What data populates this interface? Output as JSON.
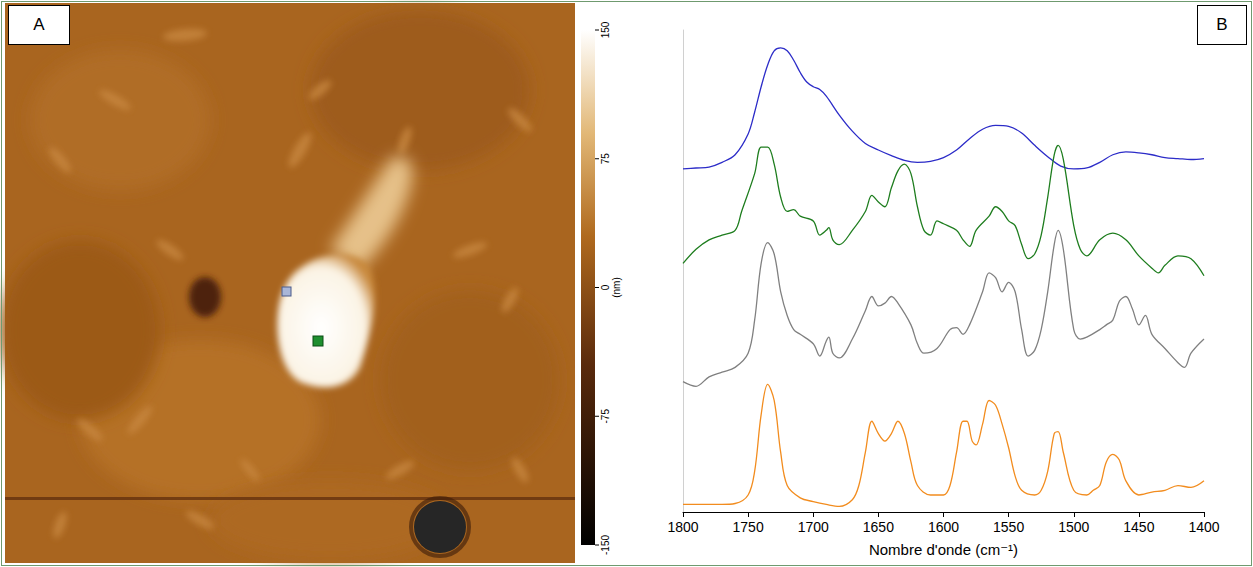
{
  "panel_labels": [
    "A",
    "B"
  ],
  "image": {
    "colorbar": {
      "range": [
        -150,
        150
      ],
      "ticks": [
        150,
        75,
        0,
        -75,
        -150
      ],
      "unit": "(nm)"
    }
  },
  "chart_data": {
    "type": "line",
    "x_label": "Nombre d'onde (cm⁻¹)",
    "xlim": [
      1400,
      1800
    ],
    "xticks": [
      1800,
      1750,
      1700,
      1650,
      1600,
      1550,
      1500,
      1450,
      1400
    ],
    "ylim": [
      0,
      510
    ],
    "yticks": [],
    "tick_labels": "x",
    "grid": false,
    "series": [
      {
        "color": "#2c2cc8",
        "x": [
          1800,
          1790,
          1780,
          1770,
          1760,
          1750,
          1745,
          1740,
          1735,
          1730,
          1725,
          1720,
          1715,
          1710,
          1705,
          1700,
          1695,
          1690,
          1680,
          1670,
          1660,
          1650,
          1640,
          1630,
          1620,
          1610,
          1600,
          1590,
          1580,
          1570,
          1560,
          1550,
          1540,
          1530,
          1520,
          1510,
          1500,
          1490,
          1480,
          1470,
          1460,
          1450,
          1440,
          1430,
          1420,
          1410,
          1400
        ],
        "values": [
          363,
          364,
          365,
          370,
          378,
          400,
          423,
          450,
          473,
          488,
          491,
          488,
          478,
          465,
          455,
          450,
          447,
          440,
          420,
          403,
          390,
          383,
          377,
          372,
          370,
          371,
          375,
          383,
          395,
          405,
          409,
          408,
          401,
          388,
          376,
          366,
          363,
          364,
          370,
          378,
          381,
          380,
          378,
          375,
          374,
          373,
          374
        ]
      },
      {
        "color": "#1e7d1e",
        "x": [
          1800,
          1790,
          1780,
          1770,
          1760,
          1755,
          1745,
          1740,
          1735,
          1730,
          1725,
          1720,
          1715,
          1710,
          1700,
          1695,
          1690,
          1688,
          1685,
          1680,
          1670,
          1660,
          1655,
          1650,
          1645,
          1640,
          1635,
          1630,
          1625,
          1620,
          1615,
          1610,
          1605,
          1600,
          1590,
          1585,
          1580,
          1575,
          1565,
          1560,
          1555,
          1550,
          1545,
          1540,
          1535,
          1530,
          1525,
          1520,
          1515,
          1512,
          1508,
          1500,
          1495,
          1490,
          1480,
          1470,
          1460,
          1450,
          1440,
          1435,
          1430,
          1420,
          1410,
          1400
        ],
        "values": [
          263,
          278,
          288,
          293,
          298,
          318,
          358,
          386,
          386,
          368,
          333,
          318,
          320,
          313,
          308,
          293,
          298,
          301,
          288,
          283,
          298,
          318,
          335,
          328,
          323,
          343,
          361,
          368,
          358,
          323,
          298,
          293,
          308,
          305,
          298,
          288,
          281,
          298,
          313,
          323,
          318,
          308,
          303,
          283,
          268,
          273,
          293,
          333,
          378,
          388,
          373,
          303,
          278,
          271,
          288,
          295,
          288,
          271,
          258,
          253,
          261,
          271,
          268,
          250
        ]
      },
      {
        "color": "#808080",
        "x": [
          1800,
          1790,
          1780,
          1770,
          1760,
          1750,
          1745,
          1740,
          1735,
          1730,
          1725,
          1720,
          1715,
          1710,
          1700,
          1695,
          1690,
          1688,
          1685,
          1680,
          1670,
          1660,
          1655,
          1650,
          1645,
          1640,
          1635,
          1625,
          1620,
          1615,
          1605,
          1595,
          1590,
          1585,
          1580,
          1570,
          1565,
          1560,
          1555,
          1550,
          1545,
          1540,
          1535,
          1530,
          1525,
          1520,
          1515,
          1512,
          1508,
          1500,
          1495,
          1490,
          1480,
          1475,
          1470,
          1465,
          1460,
          1455,
          1450,
          1445,
          1440,
          1430,
          1420,
          1415,
          1410,
          1400
        ],
        "values": [
          138,
          133,
          143,
          148,
          153,
          168,
          203,
          263,
          285,
          273,
          233,
          208,
          193,
          188,
          178,
          165,
          181,
          185,
          168,
          163,
          183,
          213,
          228,
          218,
          221,
          228,
          221,
          198,
          178,
          168,
          173,
          193,
          195,
          188,
          198,
          233,
          253,
          248,
          233,
          243,
          233,
          193,
          165,
          171,
          193,
          233,
          283,
          298,
          278,
          193,
          183,
          185,
          193,
          198,
          203,
          223,
          228,
          215,
          198,
          208,
          188,
          173,
          158,
          153,
          168,
          183
        ]
      },
      {
        "color": "#f28c1e",
        "x": [
          1800,
          1790,
          1780,
          1770,
          1760,
          1750,
          1745,
          1740,
          1735,
          1730,
          1725,
          1720,
          1710,
          1700,
          1690,
          1680,
          1670,
          1665,
          1660,
          1655,
          1650,
          1645,
          1640,
          1635,
          1630,
          1625,
          1620,
          1610,
          1600,
          1595,
          1590,
          1585,
          1582,
          1578,
          1575,
          1570,
          1565,
          1560,
          1555,
          1550,
          1545,
          1540,
          1530,
          1525,
          1520,
          1515,
          1512,
          1508,
          1500,
          1490,
          1485,
          1480,
          1475,
          1470,
          1465,
          1460,
          1450,
          1440,
          1430,
          1420,
          1410,
          1400
        ],
        "values": [
          8,
          8,
          8,
          8,
          9,
          18,
          43,
          103,
          135,
          118,
          63,
          28,
          15,
          11,
          8,
          6,
          13,
          28,
          63,
          96,
          83,
          75,
          83,
          96,
          83,
          53,
          28,
          18,
          18,
          28,
          63,
          96,
          96,
          75,
          71,
          93,
          118,
          113,
          93,
          68,
          38,
          23,
          18,
          23,
          43,
          83,
          85,
          63,
          23,
          18,
          23,
          28,
          53,
          61,
          55,
          33,
          18,
          21,
          23,
          28,
          26,
          33
        ]
      }
    ]
  }
}
